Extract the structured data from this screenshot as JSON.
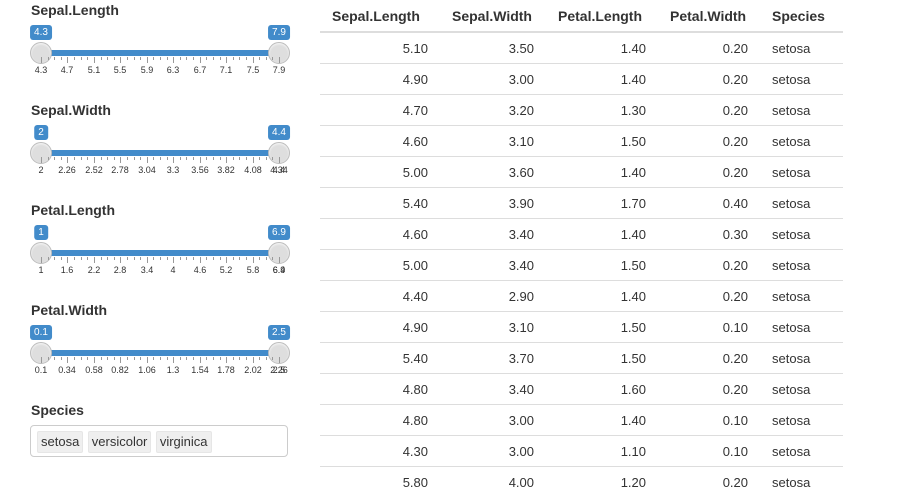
{
  "sliders": [
    {
      "label": "Sepal.Length",
      "min_value": "4.3",
      "max_value": "7.9",
      "ticks": [
        "4.3",
        "4.7",
        "5.1",
        "5.5",
        "5.9",
        "6.3",
        "6.7",
        "7.1",
        "7.5",
        "7.9"
      ]
    },
    {
      "label": "Sepal.Width",
      "min_value": "2",
      "max_value": "4.4",
      "ticks": [
        "2",
        "2.26",
        "2.52",
        "2.78",
        "3.04",
        "3.3",
        "3.56",
        "3.82",
        "4.08",
        "4.34",
        "4.4"
      ]
    },
    {
      "label": "Petal.Length",
      "min_value": "1",
      "max_value": "6.9",
      "ticks": [
        "1",
        "1.6",
        "2.2",
        "2.8",
        "3.4",
        "4",
        "4.6",
        "5.2",
        "5.8",
        "6.4",
        "6.9"
      ]
    },
    {
      "label": "Petal.Width",
      "min_value": "0.1",
      "max_value": "2.5",
      "ticks": [
        "0.1",
        "0.34",
        "0.58",
        "0.82",
        "1.06",
        "1.3",
        "1.54",
        "1.78",
        "2.02",
        "2.26",
        "2.5"
      ]
    }
  ],
  "species": {
    "label": "Species",
    "selected": [
      "setosa",
      "versicolor",
      "virginica"
    ]
  },
  "table": {
    "headers": [
      "Sepal.Length",
      "Sepal.Width",
      "Petal.Length",
      "Petal.Width",
      "Species"
    ],
    "rows": [
      [
        "5.10",
        "3.50",
        "1.40",
        "0.20",
        "setosa"
      ],
      [
        "4.90",
        "3.00",
        "1.40",
        "0.20",
        "setosa"
      ],
      [
        "4.70",
        "3.20",
        "1.30",
        "0.20",
        "setosa"
      ],
      [
        "4.60",
        "3.10",
        "1.50",
        "0.20",
        "setosa"
      ],
      [
        "5.00",
        "3.60",
        "1.40",
        "0.20",
        "setosa"
      ],
      [
        "5.40",
        "3.90",
        "1.70",
        "0.40",
        "setosa"
      ],
      [
        "4.60",
        "3.40",
        "1.40",
        "0.30",
        "setosa"
      ],
      [
        "5.00",
        "3.40",
        "1.50",
        "0.20",
        "setosa"
      ],
      [
        "4.40",
        "2.90",
        "1.40",
        "0.20",
        "setosa"
      ],
      [
        "4.90",
        "3.10",
        "1.50",
        "0.10",
        "setosa"
      ],
      [
        "5.40",
        "3.70",
        "1.50",
        "0.20",
        "setosa"
      ],
      [
        "4.80",
        "3.40",
        "1.60",
        "0.20",
        "setosa"
      ],
      [
        "4.80",
        "3.00",
        "1.40",
        "0.10",
        "setosa"
      ],
      [
        "4.30",
        "3.00",
        "1.10",
        "0.10",
        "setosa"
      ],
      [
        "5.80",
        "4.00",
        "1.20",
        "0.20",
        "setosa"
      ]
    ]
  },
  "colors": {
    "accent": "#428bca",
    "handle": "#dedede",
    "border": "#dddddd"
  }
}
